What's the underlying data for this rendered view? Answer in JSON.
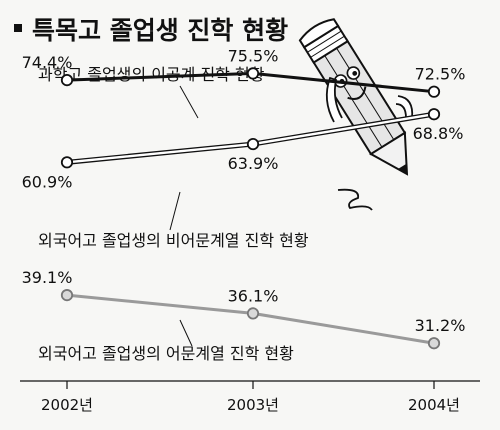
{
  "title": "특목고 졸업생 진학 현황",
  "chart_data": {
    "type": "line",
    "title": "특목고 졸업생 진학 현황",
    "x": [
      "2002년",
      "2003년",
      "2004년"
    ],
    "ylim": [
      25,
      80
    ],
    "grid": false,
    "series": [
      {
        "name": "과학고 졸업생의 이공계 진학 현황",
        "values": [
          74.4,
          75.5,
          72.5
        ],
        "labels": [
          "74.4%",
          "75.5%",
          "72.5%"
        ],
        "color": "#111111",
        "marker": "#ffffff"
      },
      {
        "name": "외국어고 졸업생의 비어문계열 진학 현황",
        "values": [
          60.9,
          63.9,
          68.8
        ],
        "labels": [
          "60.9%",
          "63.9%",
          "68.8%"
        ],
        "color": "#ffffff",
        "outline": "#111111",
        "marker": "#ffffff"
      },
      {
        "name": "외국어고 졸업생의 어문계열 진학 현황",
        "values": [
          39.1,
          36.1,
          31.2
        ],
        "labels": [
          "39.1%",
          "36.1%",
          "31.2%"
        ],
        "color": "#9a9a9a",
        "marker": "#d9d9d9"
      }
    ]
  }
}
